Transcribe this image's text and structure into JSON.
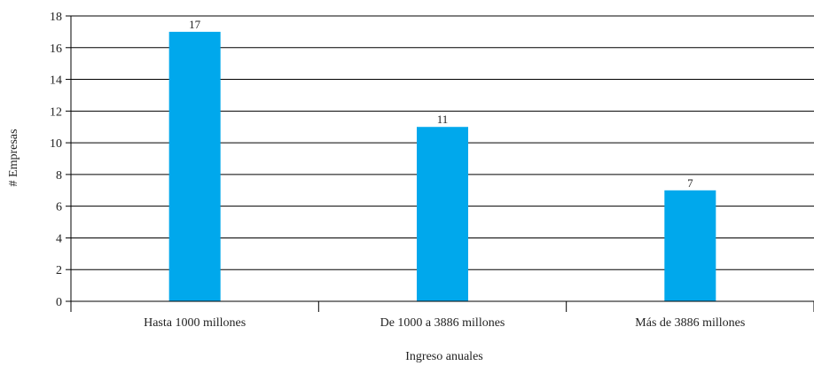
{
  "chart_data": {
    "type": "bar",
    "title": "",
    "xlabel": "Ingreso anuales",
    "ylabel": "# Empresas",
    "categories": [
      "Hasta 1000 millones",
      "De 1000 a 3886 millones",
      "Más de 3886 millones"
    ],
    "values": [
      17,
      11,
      7
    ],
    "data_labels": [
      "17",
      "11",
      "7"
    ],
    "ylim": [
      0,
      18
    ],
    "yticks": [
      "0",
      "2",
      "4",
      "6",
      "8",
      "10",
      "12",
      "14",
      "16",
      "18"
    ],
    "grid": true,
    "legend": "none",
    "bar_color": "#00a8ec",
    "grid_color": "#000000"
  }
}
